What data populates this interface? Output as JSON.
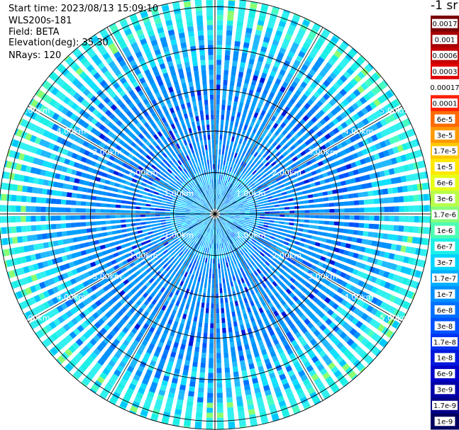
{
  "info": {
    "start_time": "Start time: 2023/08/13 15:09:10",
    "instrument": "WLS200s-181",
    "field": "Field: BETA",
    "elevation": "Elevation(deg): 35.30",
    "nrays": "NRays: 120"
  },
  "colorbar": {
    "title": "-1 sr",
    "labels": [
      "0.0017",
      "0.001",
      "0.0006",
      "0.0003",
      "0.00017",
      "0.0001",
      "6e-5",
      "3e-5",
      "1.7e-5",
      "1e-5",
      "6e-6",
      "3e-6",
      "1.7e-6",
      "1e-6",
      "6e-7",
      "3e-7",
      "1.7e-7",
      "1e-7",
      "6e-8",
      "3e-8",
      "1.7e-8",
      "1e-8",
      "6e-9",
      "3e-9",
      "1.7e-9",
      "1e-9"
    ],
    "colors": [
      "#7a0000",
      "#a80000",
      "#c40000",
      "#e00000",
      "#ffffff",
      "#ff2200",
      "#ff6a00",
      "#ff9a00",
      "#ffc800",
      "#ffe800",
      "#e6ff18",
      "#b8ff48",
      "#86ff7c",
      "#4cffb2",
      "#1cf0e6",
      "#00d4ff",
      "#00b0ff",
      "#0090ff",
      "#0070ff",
      "#0052ff",
      "#0034f0",
      "#0018dc",
      "#0000c8",
      "#0000a8",
      "#000088",
      "#000060"
    ]
  },
  "chart_data": {
    "type": "heatmap",
    "projection": "polar-ppi",
    "title": "",
    "field": "BETA",
    "units": "-1 sr",
    "n_rays": 120,
    "range_rings_km": [
      1,
      2,
      3,
      4,
      5
    ],
    "ring_labels": [
      "1.00km",
      "2.00km",
      "3.00km",
      "4.00km",
      "5.00km"
    ],
    "max_range_km": 5.2,
    "spokes_deg": [
      0,
      30,
      60,
      90,
      120,
      150,
      180,
      210,
      240,
      270,
      300,
      330
    ],
    "label_azimuths_deg": [
      60,
      120,
      240,
      300
    ],
    "colorscale": "log",
    "value_range": [
      1e-09,
      0.0017
    ],
    "dominant_range": [
      1e-08,
      1.7e-07
    ]
  }
}
